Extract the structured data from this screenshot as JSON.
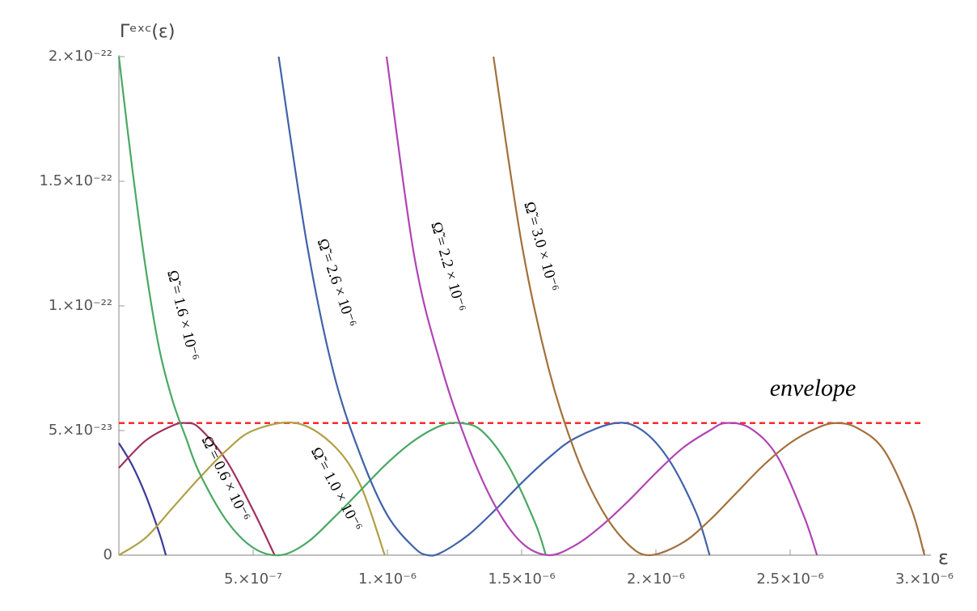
{
  "chart_data": {
    "type": "line",
    "y_label": "Γᵉˣᶜ(ε)",
    "x_label": "ε",
    "xlim": [
      0,
      3e-06
    ],
    "ylim": [
      0,
      2e-22
    ],
    "xticks": [
      {
        "value": 5e-07,
        "label": "5.×10⁻⁷"
      },
      {
        "value": 1e-06,
        "label": "1.×10⁻⁶"
      },
      {
        "value": 1.5e-06,
        "label": "1.5×10⁻⁶"
      },
      {
        "value": 2e-06,
        "label": "2.×10⁻⁶"
      },
      {
        "value": 2.5e-06,
        "label": "2.5×10⁻⁶"
      },
      {
        "value": 3e-06,
        "label": "3.×10⁻⁶"
      }
    ],
    "yticks": [
      0,
      {
        "value": 5e-23,
        "label": "5.×10⁻²³"
      },
      {
        "value": 1e-22,
        "label": "1.×10⁻²²"
      },
      {
        "value": 1.5e-22,
        "label": "1.5×10⁻²²"
      },
      {
        "value": 2e-22,
        "label": "2.×10⁻²²"
      }
    ],
    "envelope": {
      "label": "envelope",
      "value": 5.3e-23,
      "color": "#ff2a2a"
    },
    "series": [
      {
        "color": "#3a3a9a",
        "x": [
          0,
          5e-08,
          1e-07,
          1.5e-07,
          1.75e-07
        ],
        "values": [
          4.5e-23,
          3.6e-23,
          2.4e-23,
          9e-24,
          0
        ]
      },
      {
        "name": "Ω̃ = 0.6 × 10⁻⁶",
        "color": "#a0305e",
        "x": [
          0,
          1e-07,
          2e-07,
          2.5e-07,
          3e-07,
          4e-07,
          5e-07,
          5.8e-07
        ],
        "values": [
          3.5e-23,
          4.6e-23,
          5.2e-23,
          5.3e-23,
          5.1e-23,
          3.8e-23,
          1.8e-23,
          0
        ]
      },
      {
        "name": "Ω̃ = 1.0 × 10⁻⁶",
        "color": "#b0a044",
        "x": [
          0,
          1e-07,
          2e-07,
          3e-07,
          4e-07,
          5e-07,
          6.6e-07,
          8e-07,
          9e-07,
          9.9e-07
        ],
        "values": [
          0,
          7e-24,
          1.9e-23,
          3.1e-23,
          4.2e-23,
          5e-23,
          5.3e-23,
          4.4e-23,
          2.8e-23,
          0
        ]
      },
      {
        "name": "Ω̃ = 1.6 × 10⁻⁶",
        "color": "#4aa864",
        "x": [
          0,
          5e-08,
          1e-07,
          1.5e-07,
          2e-07,
          2.5e-07,
          3e-07,
          4e-07,
          5e-07,
          6e-07,
          7e-07,
          8e-07,
          9e-07,
          1e-06,
          1.1e-06,
          1.2e-06,
          1.27e-06,
          1.35e-06,
          1.45e-06,
          1.55e-06,
          1.59e-06
        ],
        "values": [
          2e-22,
          1.55e-22,
          1.15e-22,
          8.3e-23,
          6.2e-23,
          4.7e-23,
          3.3e-23,
          1.4e-23,
          3e-24,
          0,
          5e-24,
          1.5e-23,
          2.6e-23,
          3.7e-23,
          4.6e-23,
          5.2e-23,
          5.3e-23,
          5e-23,
          3.6e-23,
          1.3e-23,
          0
        ]
      },
      {
        "name": "Ω̃ = 2.6 × 10⁻⁶",
        "color": "#4062a8",
        "x": [
          5.95e-07,
          7e-07,
          8e-07,
          9e-07,
          1e-06,
          1.1e-06,
          1.15e-06,
          1.2e-06,
          1.3e-06,
          1.4e-06,
          1.5e-06,
          1.6e-06,
          1.7e-06,
          1.85e-06,
          1.95e-06,
          2.05e-06,
          2.15e-06,
          2.2e-06
        ],
        "values": [
          2e-22,
          1.25e-22,
          7.3e-23,
          4e-23,
          1.6e-23,
          3e-24,
          0,
          1e-24,
          8e-24,
          1.8e-23,
          2.9e-23,
          3.9e-23,
          4.7e-23,
          5.3e-23,
          5e-23,
          3.8e-23,
          1.7e-23,
          0
        ]
      },
      {
        "name": "Ω̃ = 2.2 × 10⁻⁶",
        "color": "#b044b4",
        "x": [
          9.97e-07,
          1.1e-06,
          1.2e-06,
          1.3e-06,
          1.4e-06,
          1.5e-06,
          1.6e-06,
          1.7e-06,
          1.8e-06,
          1.9e-06,
          2e-06,
          2.1e-06,
          2.2e-06,
          2.26e-06,
          2.35e-06,
          2.45e-06,
          2.55e-06,
          2.6e-06
        ],
        "values": [
          2e-22,
          1.2e-22,
          7.6e-23,
          4.4e-23,
          2e-23,
          5e-24,
          0,
          4e-24,
          1.2e-23,
          2.2e-23,
          3.3e-23,
          4.3e-23,
          5e-23,
          5.3e-23,
          5.1e-23,
          4e-23,
          1.6e-23,
          0
        ]
      },
      {
        "name": "Ω̃ = 3.0 × 10⁻⁶",
        "color": "#a2703c",
        "x": [
          1.395e-06,
          1.5e-06,
          1.6e-06,
          1.7e-06,
          1.8e-06,
          1.9e-06,
          1.98e-06,
          2.1e-06,
          2.2e-06,
          2.3e-06,
          2.4e-06,
          2.5e-06,
          2.6e-06,
          2.67e-06,
          2.75e-06,
          2.85e-06,
          2.95e-06,
          3e-06
        ],
        "values": [
          2e-22,
          1.25e-22,
          7.5e-23,
          4.1e-23,
          1.8e-23,
          4e-24,
          0,
          5e-24,
          1.4e-23,
          2.5e-23,
          3.6e-23,
          4.5e-23,
          5.1e-23,
          5.3e-23,
          5.1e-23,
          4.2e-23,
          1.9e-23,
          0
        ]
      }
    ]
  }
}
